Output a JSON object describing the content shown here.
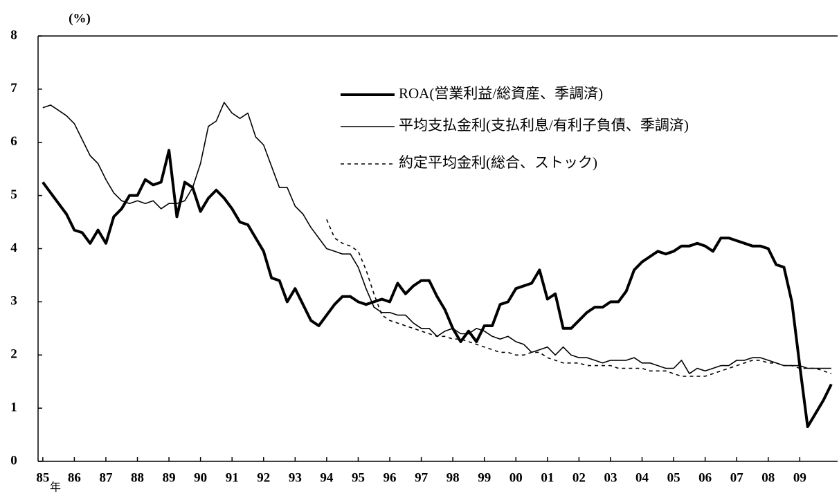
{
  "chart_data": {
    "type": "line",
    "y_label": "(%)",
    "x_unit": "年",
    "xlim": [
      1984.85,
      2010.2
    ],
    "xticks": [
      {
        "value": 1985,
        "label": "85"
      },
      {
        "value": 1986,
        "label": "86"
      },
      {
        "value": 1987,
        "label": "87"
      },
      {
        "value": 1988,
        "label": "88"
      },
      {
        "value": 1989,
        "label": "89"
      },
      {
        "value": 1990,
        "label": "90"
      },
      {
        "value": 1991,
        "label": "91"
      },
      {
        "value": 1992,
        "label": "92"
      },
      {
        "value": 1993,
        "label": "93"
      },
      {
        "value": 1994,
        "label": "94"
      },
      {
        "value": 1995,
        "label": "95"
      },
      {
        "value": 1996,
        "label": "96"
      },
      {
        "value": 1997,
        "label": "97"
      },
      {
        "value": 1998,
        "label": "98"
      },
      {
        "value": 1999,
        "label": "99"
      },
      {
        "value": 2000,
        "label": "00"
      },
      {
        "value": 2001,
        "label": "01"
      },
      {
        "value": 2002,
        "label": "02"
      },
      {
        "value": 2003,
        "label": "03"
      },
      {
        "value": 2004,
        "label": "04"
      },
      {
        "value": 2005,
        "label": "05"
      },
      {
        "value": 2006,
        "label": "06"
      },
      {
        "value": 2007,
        "label": "07"
      },
      {
        "value": 2008,
        "label": "08"
      },
      {
        "value": 2009,
        "label": "09"
      }
    ],
    "ylim": [
      0,
      8
    ],
    "yticks": [
      0,
      1,
      2,
      3,
      4,
      5,
      6,
      7,
      8
    ],
    "grid": false,
    "legend": "top",
    "x": [
      1985,
      1985.25,
      1985.5,
      1985.75,
      1986,
      1986.25,
      1986.5,
      1986.75,
      1987,
      1987.25,
      1987.5,
      1987.75,
      1988,
      1988.25,
      1988.5,
      1988.75,
      1989,
      1989.25,
      1989.5,
      1989.75,
      1990,
      1990.25,
      1990.5,
      1990.75,
      1991,
      1991.25,
      1991.5,
      1991.75,
      1992,
      1992.25,
      1992.5,
      1992.75,
      1993,
      1993.25,
      1993.5,
      1993.75,
      1994,
      1994.25,
      1994.5,
      1994.75,
      1995,
      1995.25,
      1995.5,
      1995.75,
      1996,
      1996.25,
      1996.5,
      1996.75,
      1997,
      1997.25,
      1997.5,
      1997.75,
      1998,
      1998.25,
      1998.5,
      1998.75,
      1999,
      1999.25,
      1999.5,
      1999.75,
      2000,
      2000.25,
      2000.5,
      2000.75,
      2001,
      2001.25,
      2001.5,
      2001.75,
      2002,
      2002.25,
      2002.5,
      2002.75,
      2003,
      2003.25,
      2003.5,
      2003.75,
      2004,
      2004.25,
      2004.5,
      2004.75,
      2005,
      2005.25,
      2005.5,
      2005.75,
      2006,
      2006.25,
      2006.5,
      2006.75,
      2007,
      2007.25,
      2007.5,
      2007.75,
      2008,
      2008.25,
      2008.5,
      2008.75,
      2009,
      2009.25,
      2009.5,
      2009.75,
      2010
    ],
    "series": [
      {
        "name": "ROA(営業利益/総資産、季調済)",
        "color": "#000000",
        "style": "thick",
        "values": [
          5.25,
          5.05,
          4.85,
          4.65,
          4.35,
          4.3,
          4.1,
          4.35,
          4.1,
          4.6,
          4.75,
          5.0,
          5.0,
          5.3,
          5.2,
          5.25,
          5.85,
          4.6,
          5.25,
          5.15,
          4.7,
          4.95,
          5.1,
          4.95,
          4.75,
          4.5,
          4.45,
          4.2,
          3.95,
          3.45,
          3.4,
          3.0,
          3.25,
          2.95,
          2.65,
          2.55,
          2.75,
          2.95,
          3.1,
          3.1,
          3.0,
          2.95,
          3.0,
          3.05,
          3.0,
          3.35,
          3.15,
          3.3,
          3.4,
          3.4,
          3.1,
          2.85,
          2.5,
          2.25,
          2.45,
          2.25,
          2.55,
          2.55,
          2.95,
          3.0,
          3.25,
          3.3,
          3.35,
          3.6,
          3.05,
          3.15,
          2.5,
          2.5,
          2.65,
          2.8,
          2.9,
          2.9,
          3.0,
          3.0,
          3.2,
          3.6,
          3.75,
          3.85,
          3.95,
          3.9,
          3.95,
          4.05,
          4.05,
          4.1,
          4.05,
          3.95,
          4.2,
          4.2,
          4.15,
          4.1,
          4.05,
          4.05,
          4.0,
          3.7,
          3.65,
          3.0,
          1.8,
          0.65,
          0.9,
          1.15,
          1.45
        ]
      },
      {
        "name": "平均支払金利(支払利息/有利子負債、季調済)",
        "color": "#000000",
        "style": "thin",
        "values": [
          6.65,
          6.7,
          6.6,
          6.5,
          6.35,
          6.05,
          5.75,
          5.6,
          5.3,
          5.05,
          4.9,
          4.85,
          4.9,
          4.85,
          4.9,
          4.75,
          4.85,
          4.85,
          4.9,
          5.15,
          5.6,
          6.3,
          6.4,
          6.75,
          6.55,
          6.45,
          6.55,
          6.1,
          5.95,
          5.55,
          5.15,
          5.15,
          4.8,
          4.65,
          4.4,
          4.2,
          4.0,
          3.95,
          3.9,
          3.9,
          3.65,
          3.25,
          2.9,
          2.8,
          2.8,
          2.75,
          2.75,
          2.6,
          2.5,
          2.5,
          2.35,
          2.45,
          2.5,
          2.4,
          2.4,
          2.5,
          2.45,
          2.35,
          2.3,
          2.35,
          2.25,
          2.2,
          2.05,
          2.1,
          2.15,
          2.0,
          2.15,
          2.0,
          1.95,
          1.95,
          1.9,
          1.85,
          1.9,
          1.9,
          1.9,
          1.95,
          1.85,
          1.85,
          1.8,
          1.75,
          1.75,
          1.9,
          1.65,
          1.75,
          1.7,
          1.75,
          1.8,
          1.8,
          1.9,
          1.9,
          1.95,
          1.95,
          1.9,
          1.85,
          1.8,
          1.8,
          1.8,
          1.75,
          1.75,
          1.75,
          1.75
        ]
      },
      {
        "name": "約定平均金利(総合、ストック)",
        "color": "#000000",
        "style": "dotted",
        "values": [
          null,
          null,
          null,
          null,
          null,
          null,
          null,
          null,
          null,
          null,
          null,
          null,
          null,
          null,
          null,
          null,
          null,
          null,
          null,
          null,
          null,
          null,
          null,
          null,
          null,
          null,
          null,
          null,
          null,
          null,
          null,
          null,
          null,
          null,
          null,
          null,
          4.55,
          4.2,
          4.1,
          4.05,
          3.95,
          3.6,
          3.15,
          2.75,
          2.65,
          2.6,
          2.55,
          2.5,
          2.45,
          2.4,
          2.35,
          2.35,
          2.3,
          2.3,
          2.25,
          2.2,
          2.15,
          2.1,
          2.05,
          2.05,
          2.0,
          2.0,
          2.05,
          2.05,
          1.95,
          1.9,
          1.85,
          1.85,
          1.85,
          1.8,
          1.8,
          1.8,
          1.8,
          1.75,
          1.75,
          1.75,
          1.75,
          1.7,
          1.7,
          1.7,
          1.65,
          1.6,
          1.6,
          1.6,
          1.6,
          1.65,
          1.7,
          1.75,
          1.8,
          1.85,
          1.9,
          1.9,
          1.85,
          1.85,
          1.8,
          1.8,
          1.75,
          1.75,
          1.75,
          1.7,
          1.65
        ]
      }
    ]
  }
}
